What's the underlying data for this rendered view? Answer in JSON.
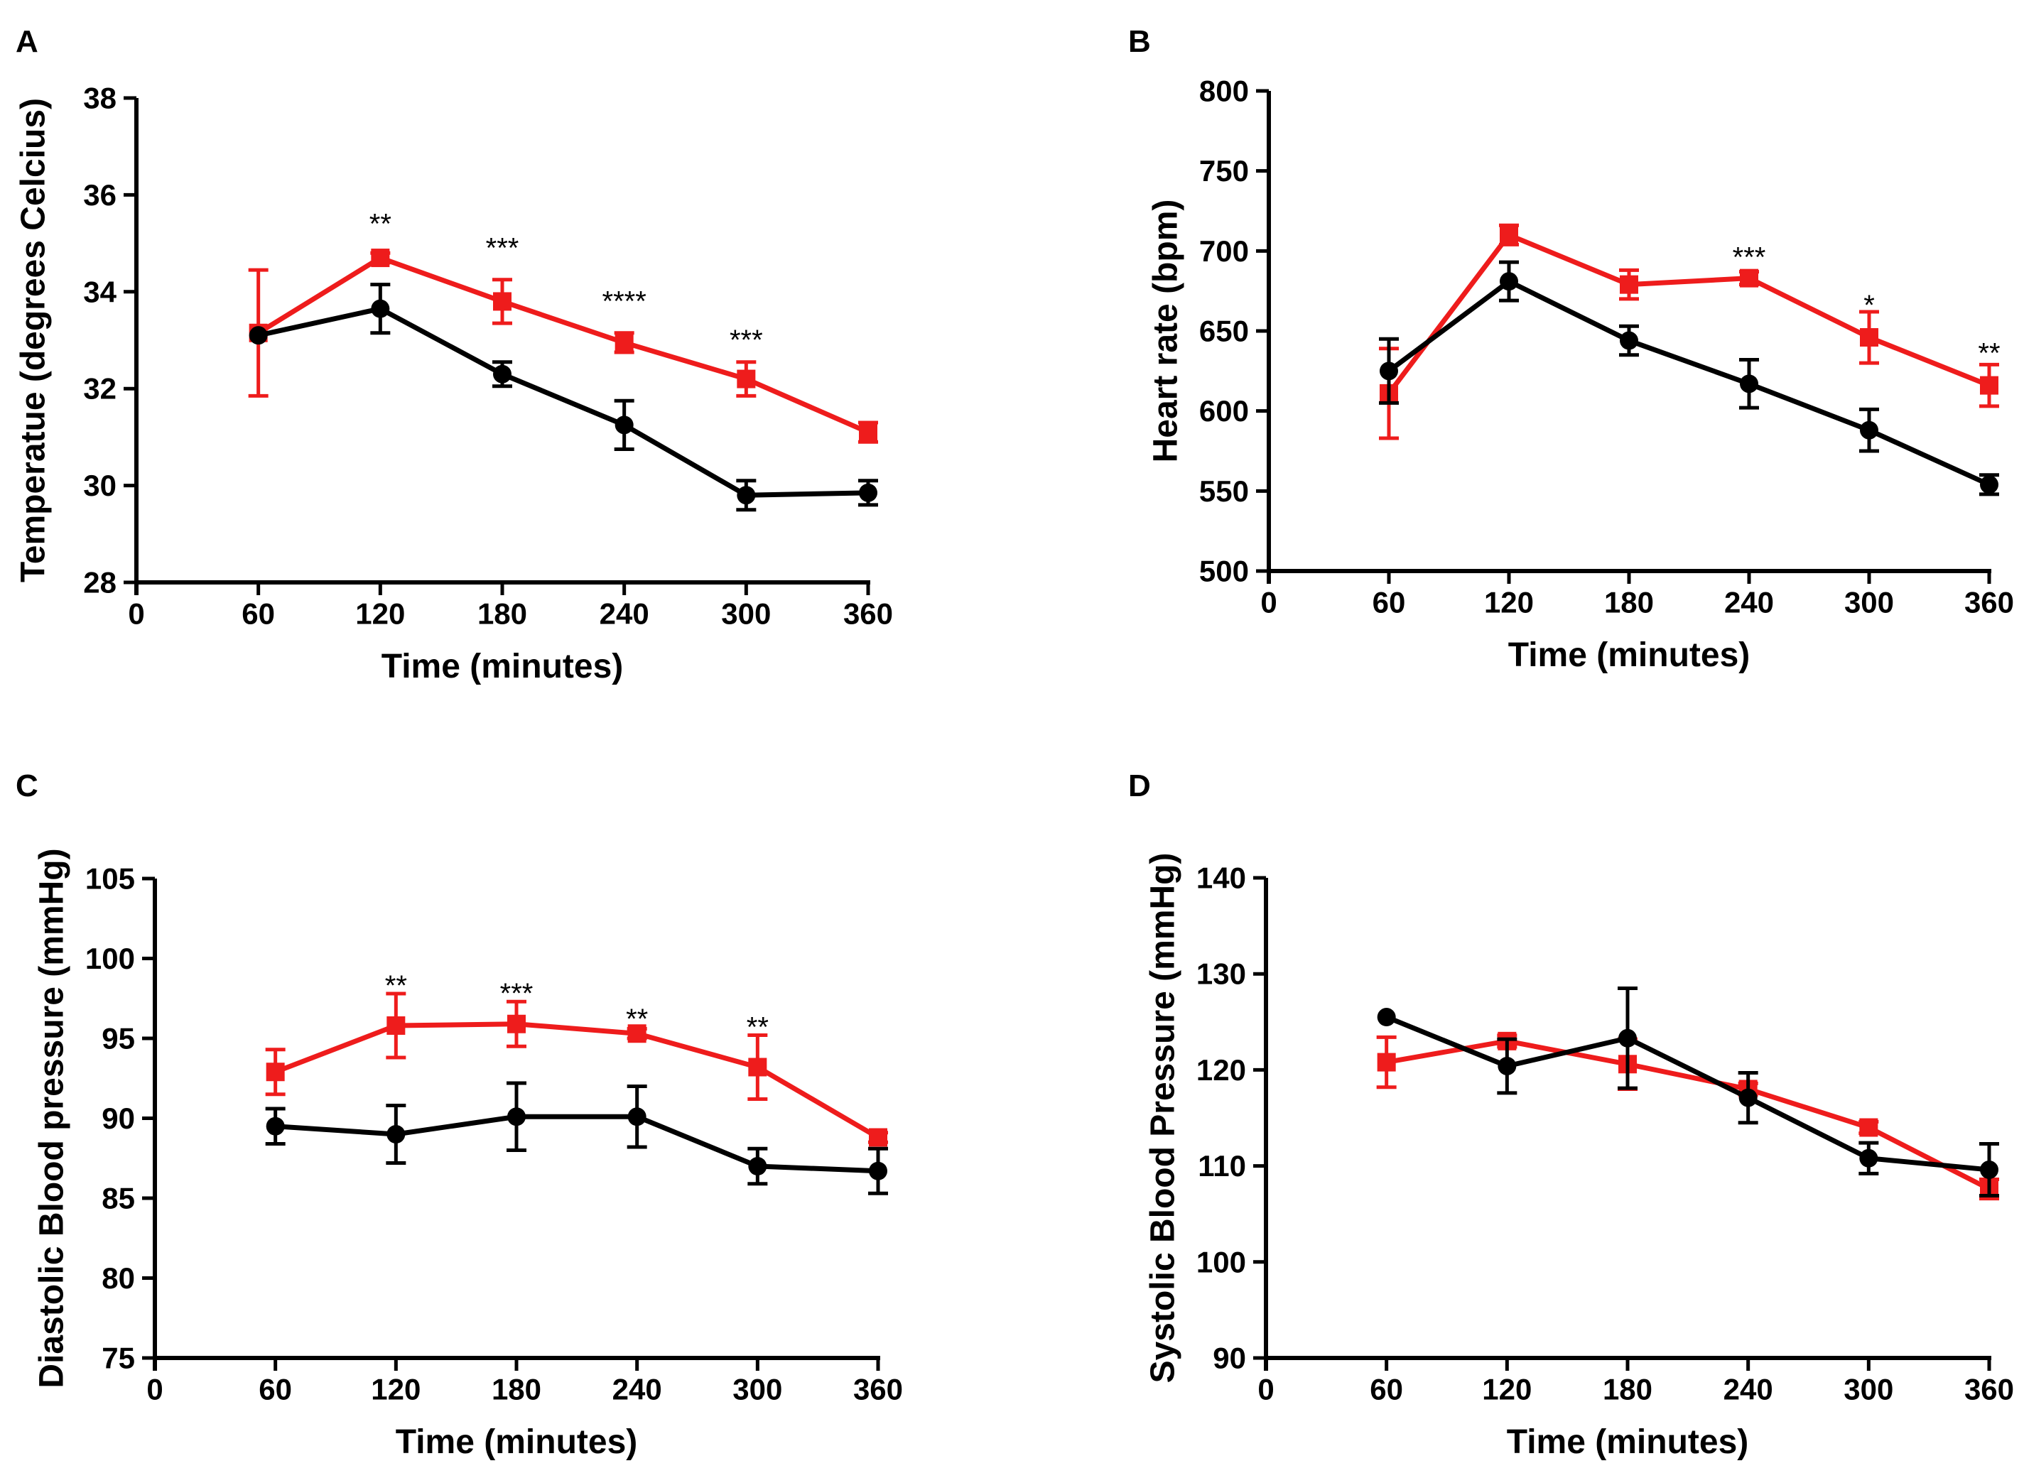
{
  "chart_data": [
    {
      "type": "line",
      "panel": "A",
      "xlabel": "Time (minutes)",
      "ylabel": "Temperatue (degrees Celcius)",
      "xlim": [
        0,
        360
      ],
      "ylim": [
        28,
        38
      ],
      "xticks": [
        0,
        60,
        120,
        180,
        240,
        300,
        360
      ],
      "yticks": [
        28,
        30,
        32,
        34,
        36,
        38
      ],
      "x": [
        60,
        120,
        180,
        240,
        300,
        360
      ],
      "series": [
        {
          "name": "black",
          "color": "#000000",
          "marker": "circle",
          "values": [
            33.1,
            33.65,
            32.3,
            31.25,
            29.8,
            29.85
          ],
          "errors": [
            0,
            0.5,
            0.25,
            0.5,
            0.3,
            0.25
          ]
        },
        {
          "name": "red",
          "color": "#ee1c1c",
          "marker": "square",
          "values": [
            33.15,
            34.7,
            33.8,
            32.95,
            32.2,
            31.1
          ],
          "errors": [
            1.3,
            0.1,
            0.45,
            0.2,
            0.35,
            0.2
          ]
        }
      ],
      "annotations": [
        {
          "x": 120,
          "text": "**",
          "y": 35.4
        },
        {
          "x": 180,
          "text": "***",
          "y": 34.9
        },
        {
          "x": 240,
          "text": "****",
          "y": 33.8
        },
        {
          "x": 300,
          "text": "***",
          "y": 33.0
        }
      ]
    },
    {
      "type": "line",
      "panel": "B",
      "xlabel": "Time (minutes)",
      "ylabel": "Heart rate (bpm)",
      "xlim": [
        0,
        360
      ],
      "ylim": [
        500,
        800
      ],
      "xticks": [
        0,
        60,
        120,
        180,
        240,
        300,
        360
      ],
      "yticks": [
        500,
        550,
        600,
        650,
        700,
        750,
        800
      ],
      "x": [
        60,
        120,
        180,
        240,
        300,
        360
      ],
      "series": [
        {
          "name": "black",
          "color": "#000000",
          "marker": "circle",
          "values": [
            625,
            681,
            644,
            617,
            588,
            554
          ],
          "errors": [
            20,
            12,
            9,
            15,
            13,
            6
          ]
        },
        {
          "name": "red",
          "color": "#ee1c1c",
          "marker": "square",
          "values": [
            611,
            710,
            679,
            683,
            646,
            616
          ],
          "errors": [
            28,
            6,
            9,
            4,
            16,
            13
          ]
        }
      ],
      "annotations": [
        {
          "x": 240,
          "text": "***",
          "y": 696
        },
        {
          "x": 300,
          "text": "*",
          "y": 666
        },
        {
          "x": 360,
          "text": "**",
          "y": 636
        }
      ]
    },
    {
      "type": "line",
      "panel": "C",
      "xlabel": "Time (minutes)",
      "ylabel": "Diastolic Blood pressure (mmHg)",
      "xlim": [
        0,
        360
      ],
      "ylim": [
        75,
        105
      ],
      "xticks": [
        0,
        60,
        120,
        180,
        240,
        300,
        360
      ],
      "yticks": [
        75,
        80,
        85,
        90,
        95,
        100,
        105
      ],
      "x": [
        60,
        120,
        180,
        240,
        300,
        360
      ],
      "series": [
        {
          "name": "black",
          "color": "#000000",
          "marker": "circle",
          "values": [
            89.5,
            89.0,
            90.1,
            90.1,
            87.0,
            86.7
          ],
          "errors": [
            1.1,
            1.8,
            2.1,
            1.9,
            1.1,
            1.4
          ]
        },
        {
          "name": "red",
          "color": "#ee1c1c",
          "marker": "square",
          "values": [
            92.9,
            95.8,
            95.9,
            95.3,
            93.2,
            88.8
          ],
          "errors": [
            1.4,
            2.0,
            1.4,
            0.3,
            2.0,
            0.3
          ]
        }
      ],
      "annotations": [
        {
          "x": 120,
          "text": "**",
          "y": 98.3
        },
        {
          "x": 180,
          "text": "***",
          "y": 97.8
        },
        {
          "x": 240,
          "text": "**",
          "y": 96.2
        },
        {
          "x": 300,
          "text": "**",
          "y": 95.7
        }
      ]
    },
    {
      "type": "line",
      "panel": "D",
      "xlabel": "Time (minutes)",
      "ylabel": "Systolic Blood Pressure (mmHg)",
      "xlim": [
        0,
        360
      ],
      "ylim": [
        90,
        140
      ],
      "xticks": [
        0,
        60,
        120,
        180,
        240,
        300,
        360
      ],
      "yticks": [
        90,
        100,
        110,
        120,
        130,
        140
      ],
      "x": [
        60,
        120,
        180,
        240,
        300,
        360
      ],
      "series": [
        {
          "name": "black",
          "color": "#000000",
          "marker": "circle",
          "values": [
            125.5,
            120.4,
            123.3,
            117.1,
            110.8,
            109.6
          ],
          "errors": [
            0,
            2.8,
            5.2,
            2.6,
            1.6,
            2.7
          ]
        },
        {
          "name": "red",
          "color": "#ee1c1c",
          "marker": "square",
          "values": [
            120.8,
            123.0,
            120.6,
            118.0,
            114.0,
            107.6
          ],
          "errors": [
            2.6,
            0.6,
            2.6,
            0.6,
            0.6,
            1.0
          ]
        }
      ],
      "annotations": []
    }
  ]
}
